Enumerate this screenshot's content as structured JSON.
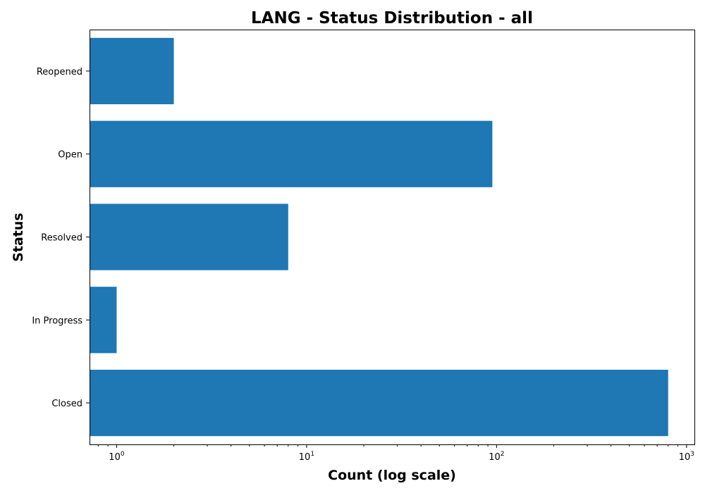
{
  "chart_data": {
    "type": "bar",
    "orientation": "horizontal",
    "title": "LANG - Status Distribution - all",
    "xlabel": "Count (log scale)",
    "ylabel": "Status",
    "xscale": "log",
    "xlim": [
      0.72,
      1100
    ],
    "x_ticks": [
      {
        "value": 1,
        "base": "10",
        "exp": "0"
      },
      {
        "value": 10,
        "base": "10",
        "exp": "1"
      },
      {
        "value": 100,
        "base": "10",
        "exp": "2"
      },
      {
        "value": 1000,
        "base": "10",
        "exp": "3"
      }
    ],
    "categories": [
      "Closed",
      "In Progress",
      "Resolved",
      "Open",
      "Reopened"
    ],
    "values": [
      800,
      1,
      8,
      95,
      2
    ],
    "bar_color": "#1f77b4",
    "grid": false,
    "legend": "none"
  }
}
